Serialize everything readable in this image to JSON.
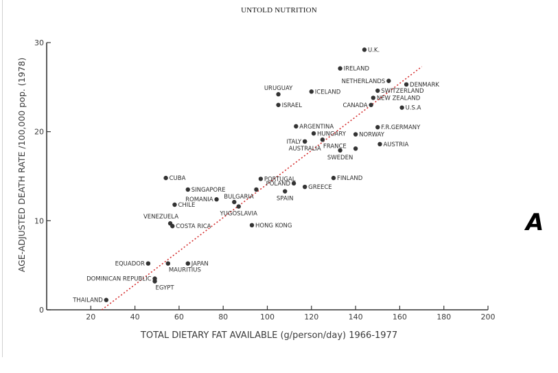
{
  "header": {
    "title": "UNTOLD NUTRITION"
  },
  "panel_label": "A",
  "colors": {
    "point": "#333333",
    "trend": "#d42a2a",
    "axis": "#333333"
  },
  "chart_data": {
    "type": "scatter",
    "title": "",
    "xlabel": "TOTAL DIETARY FAT AVAILABLE (g/person/day) 1966-1977",
    "ylabel": "AGE-ADJUSTED DEATH RATE /100,000 pop. (1978)",
    "xlim": [
      0,
      200
    ],
    "ylim": [
      0,
      30
    ],
    "xticks": [
      20,
      40,
      60,
      80,
      100,
      120,
      140,
      160,
      180,
      200
    ],
    "yticks": [
      0,
      10,
      20,
      30
    ],
    "xtick_labels": [
      "20",
      "40",
      "60",
      "80",
      "100",
      "120",
      "140",
      "160",
      "180",
      "200"
    ],
    "ytick_labels": [
      "0",
      "10",
      "20",
      "30"
    ],
    "trendline": {
      "x": [
        25,
        170
      ],
      "y": [
        0,
        27.3
      ]
    },
    "points": [
      {
        "label": "U.K.",
        "x": 144,
        "y": 29.2,
        "pos": "right"
      },
      {
        "label": "IRELAND",
        "x": 133,
        "y": 27.1,
        "pos": "right"
      },
      {
        "label": "NETHERLANDS",
        "x": 155,
        "y": 25.7,
        "pos": "left"
      },
      {
        "label": "DENMARK",
        "x": 163,
        "y": 25.3,
        "pos": "right"
      },
      {
        "label": "URUGUAY",
        "x": 105,
        "y": 24.2,
        "pos": "above"
      },
      {
        "label": "ICELAND",
        "x": 120,
        "y": 24.5,
        "pos": "right"
      },
      {
        "label": "SWITZERLAND",
        "x": 150,
        "y": 24.6,
        "pos": "right"
      },
      {
        "label": "NEW ZEALAND",
        "x": 148,
        "y": 23.8,
        "pos": "right"
      },
      {
        "label": "ISRAEL",
        "x": 105,
        "y": 23.0,
        "pos": "right"
      },
      {
        "label": "CANADA",
        "x": 147,
        "y": 23.0,
        "pos": "left"
      },
      {
        "label": "U.S.A",
        "x": 161,
        "y": 22.7,
        "pos": "right"
      },
      {
        "label": "ARGENTINA",
        "x": 113,
        "y": 20.6,
        "pos": "right"
      },
      {
        "label": "F.R.GERMANY",
        "x": 150,
        "y": 20.5,
        "pos": "right"
      },
      {
        "label": "HUNGARY",
        "x": 121,
        "y": 19.8,
        "pos": "right"
      },
      {
        "label": "NORWAY",
        "x": 140,
        "y": 19.7,
        "pos": "right"
      },
      {
        "label": "ITALY",
        "x": 117,
        "y": 18.9,
        "pos": "left"
      },
      {
        "label": "FRANCE",
        "x": 125,
        "y": 19.1,
        "pos": "below-right"
      },
      {
        "label": "AUSTRIA",
        "x": 151,
        "y": 18.6,
        "pos": "right"
      },
      {
        "label": "AUSTRALIA",
        "x": 117,
        "y": 18.9,
        "pos": "below"
      },
      {
        "label": "SWEDEN",
        "x": 133,
        "y": 17.9,
        "pos": "below"
      },
      {
        "label": "",
        "x": 140,
        "y": 18.1,
        "pos": "none"
      },
      {
        "label": "CUBA",
        "x": 54,
        "y": 14.8,
        "pos": "right"
      },
      {
        "label": "PORTUGAL",
        "x": 97,
        "y": 14.7,
        "pos": "right"
      },
      {
        "label": "FINLAND",
        "x": 130,
        "y": 14.8,
        "pos": "right"
      },
      {
        "label": "POLAND",
        "x": 112,
        "y": 14.2,
        "pos": "left"
      },
      {
        "label": "GREECE",
        "x": 117,
        "y": 13.8,
        "pos": "right"
      },
      {
        "label": "SINGAPORE",
        "x": 64,
        "y": 13.5,
        "pos": "right"
      },
      {
        "label": "SPAIN",
        "x": 108,
        "y": 13.3,
        "pos": "below"
      },
      {
        "label": "",
        "x": 95,
        "y": 13.5,
        "pos": "none"
      },
      {
        "label": "ROMANIA",
        "x": 77,
        "y": 12.4,
        "pos": "left"
      },
      {
        "label": "BULGARIA",
        "x": 85,
        "y": 12.1,
        "pos": "above-right"
      },
      {
        "label": "CHILE",
        "x": 58,
        "y": 11.8,
        "pos": "right"
      },
      {
        "label": "YUGOSLAVIA",
        "x": 87,
        "y": 11.6,
        "pos": "below"
      },
      {
        "label": "VENEZUELA",
        "x": 56,
        "y": 9.7,
        "pos": "above-left"
      },
      {
        "label": "COSTA RICA",
        "x": 57,
        "y": 9.4,
        "pos": "right"
      },
      {
        "label": "HONG KONG",
        "x": 93,
        "y": 9.5,
        "pos": "right"
      },
      {
        "label": "EQUADOR",
        "x": 46,
        "y": 5.2,
        "pos": "left"
      },
      {
        "label": "MAURITIUS",
        "x": 55,
        "y": 5.2,
        "pos": "below-right"
      },
      {
        "label": "JAPAN",
        "x": 64,
        "y": 5.2,
        "pos": "right"
      },
      {
        "label": "DOMINICAN REPUBLIC",
        "x": 49,
        "y": 3.5,
        "pos": "left"
      },
      {
        "label": "EGYPT",
        "x": 49,
        "y": 3.2,
        "pos": "below-right"
      },
      {
        "label": "THAILAND",
        "x": 27,
        "y": 1.1,
        "pos": "left"
      }
    ]
  }
}
